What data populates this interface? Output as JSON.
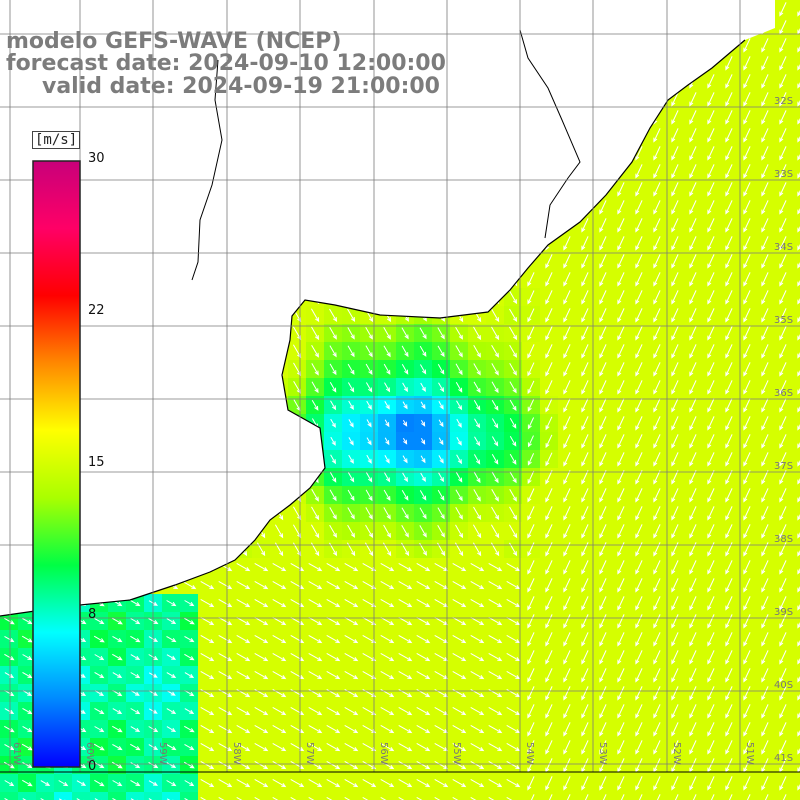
{
  "title": {
    "model": "modelo GEFS-WAVE (NCEP)",
    "forecast": "forecast date: 2024-09-10 12:00:00",
    "valid": "valid date: 2024-09-19 21:00:00"
  },
  "colorbar": {
    "unit": "[m/s]",
    "ticks": [
      "30",
      "22",
      "15",
      "8",
      "0"
    ],
    "colors": [
      "#0000ff",
      "#0088ff",
      "#00ffff",
      "#00ff44",
      "#aaff00",
      "#ffff00",
      "#ff8800",
      "#ff0000",
      "#ff0066",
      "#c8007a"
    ]
  },
  "lat_labels": [
    "32S",
    "33S",
    "34S",
    "35S",
    "36S",
    "37S",
    "38S",
    "39S",
    "40S",
    "41S"
  ],
  "lon_labels": [
    "61W",
    "60W",
    "59W",
    "58W",
    "57W",
    "56W",
    "55W",
    "54W",
    "53W",
    "52W",
    "51W"
  ],
  "map_colors": {
    "land": "#ffffff",
    "coast": "#000000",
    "grid": "#7a7a7a",
    "arrow": "#ffffff"
  }
}
